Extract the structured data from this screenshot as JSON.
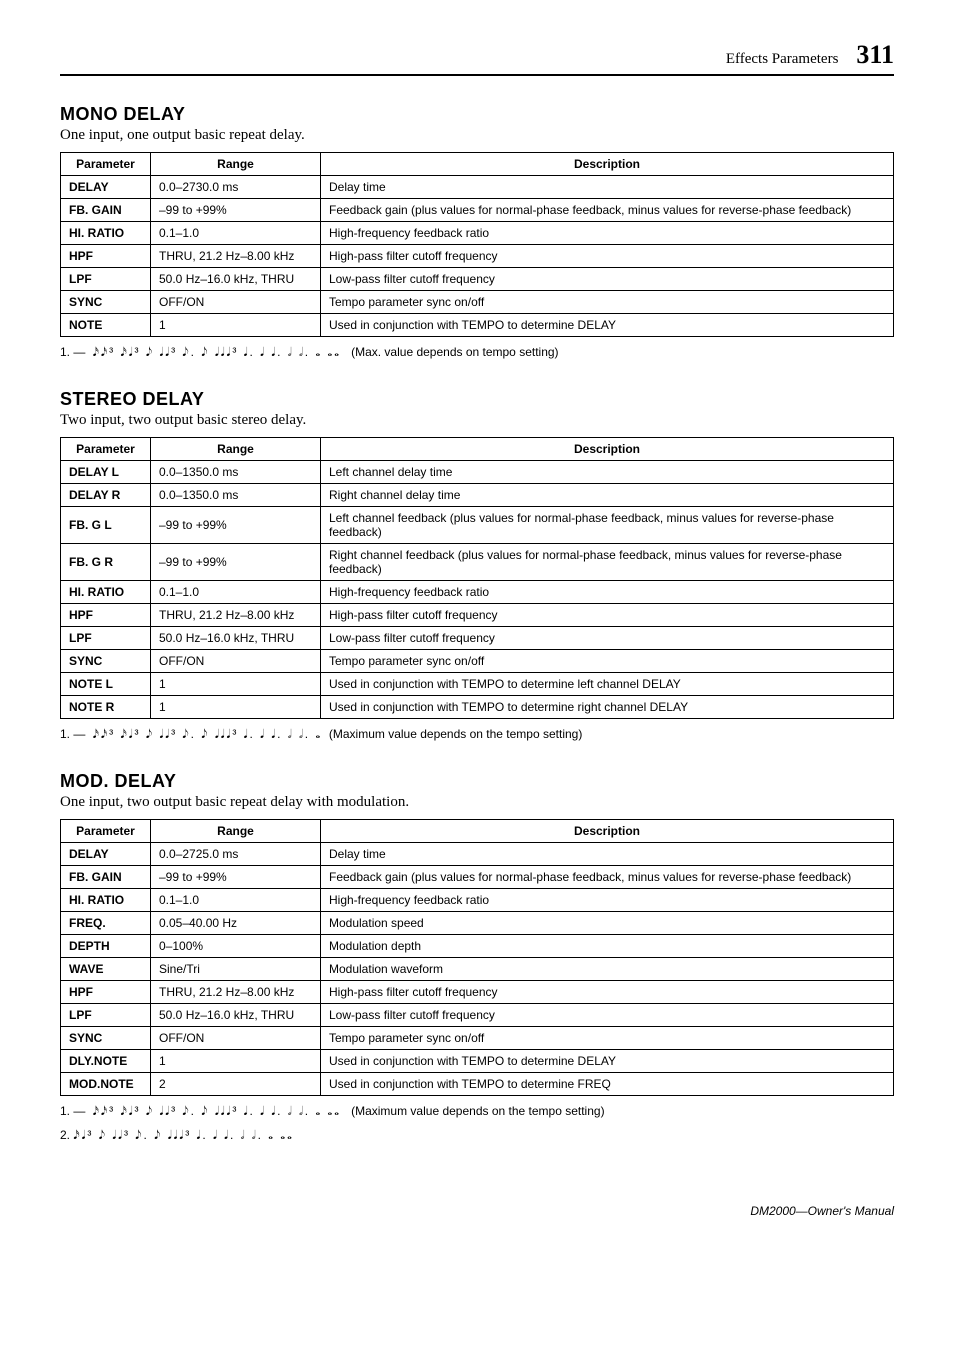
{
  "header": {
    "section_label": "Effects Parameters",
    "page_number": "311"
  },
  "mono": {
    "title": "MONO DELAY",
    "subtitle": "One input, one output basic repeat delay.",
    "headers": {
      "param": "Parameter",
      "range": "Range",
      "desc": "Description"
    },
    "rows": [
      {
        "param": "DELAY",
        "range": "0.0–2730.0 ms",
        "desc": "Delay time"
      },
      {
        "param": "FB. GAIN",
        "range": "–99 to +99%",
        "desc": "Feedback gain (plus values for normal-phase feedback, minus values for reverse-phase feedback)"
      },
      {
        "param": "HI. RATIO",
        "range": "0.1–1.0",
        "desc": "High-frequency feedback ratio"
      },
      {
        "param": "HPF",
        "range": "THRU, 21.2 Hz–8.00 kHz",
        "desc": "High-pass filter cutoff frequency"
      },
      {
        "param": "LPF",
        "range": "50.0 Hz–16.0 kHz, THRU",
        "desc": "Low-pass filter cutoff frequency"
      },
      {
        "param": "SYNC",
        "range": "OFF/ON",
        "desc": "Tempo parameter sync on/off"
      },
      {
        "param": "NOTE",
        "range": "1",
        "desc": "Used in conjunction with TEMPO to determine DELAY"
      }
    ],
    "footnote_num": "1.",
    "footnote_notation": "— 𝅘𝅥𝅯𝅘𝅥𝅯³ 𝅘𝅥𝅯𝅘𝅥³ 𝅘𝅥𝅮 𝅘𝅥𝅘𝅥³ 𝅘𝅥𝅮. 𝅘𝅥𝅮 𝅘𝅥𝅘𝅥𝅘𝅥³ 𝅘𝅥. 𝅘𝅥 𝅘𝅥. 𝅗𝅥 𝅗𝅥. 𝅝 𝅝𝅝",
    "footnote_text": "(Max. value depends on tempo setting)"
  },
  "stereo": {
    "title": "STEREO DELAY",
    "subtitle": "Two input, two output basic stereo delay.",
    "headers": {
      "param": "Parameter",
      "range": "Range",
      "desc": "Description"
    },
    "rows": [
      {
        "param": "DELAY L",
        "range": "0.0–1350.0 ms",
        "desc": "Left channel delay time"
      },
      {
        "param": "DELAY R",
        "range": "0.0–1350.0 ms",
        "desc": "Right channel delay time"
      },
      {
        "param": "FB. G L",
        "range": "–99 to +99%",
        "desc": "Left channel feedback (plus values for normal-phase feedback, minus values for reverse-phase feedback)"
      },
      {
        "param": "FB. G R",
        "range": "–99 to +99%",
        "desc": "Right channel feedback (plus values for normal-phase feedback, minus values for reverse-phase feedback)"
      },
      {
        "param": "HI. RATIO",
        "range": "0.1–1.0",
        "desc": "High-frequency feedback ratio"
      },
      {
        "param": "HPF",
        "range": "THRU, 21.2 Hz–8.00 kHz",
        "desc": "High-pass filter cutoff frequency"
      },
      {
        "param": "LPF",
        "range": "50.0 Hz–16.0 kHz, THRU",
        "desc": "Low-pass filter cutoff frequency"
      },
      {
        "param": "SYNC",
        "range": "OFF/ON",
        "desc": "Tempo parameter sync on/off"
      },
      {
        "param": "NOTE L",
        "range": "1",
        "desc": "Used in conjunction with TEMPO to determine left channel DELAY"
      },
      {
        "param": "NOTE R",
        "range": "1",
        "desc": "Used in conjunction with TEMPO to determine right channel DELAY"
      }
    ],
    "footnote_num": "1.",
    "footnote_notation": "— 𝅘𝅥𝅯𝅘𝅥𝅯³ 𝅘𝅥𝅯𝅘𝅥³ 𝅘𝅥𝅮 𝅘𝅥𝅘𝅥³ 𝅘𝅥𝅮. 𝅘𝅥𝅮 𝅘𝅥𝅘𝅥𝅘𝅥³ 𝅘𝅥. 𝅘𝅥 𝅘𝅥. 𝅗𝅥 𝅗𝅥. 𝅝",
    "footnote_text": "(Maximum value depends on the tempo setting)"
  },
  "mod": {
    "title": "MOD. DELAY",
    "subtitle": "One input, two output basic repeat delay with modulation.",
    "headers": {
      "param": "Parameter",
      "range": "Range",
      "desc": "Description"
    },
    "rows": [
      {
        "param": "DELAY",
        "range": "0.0–2725.0 ms",
        "desc": "Delay time"
      },
      {
        "param": "FB. GAIN",
        "range": "–99 to +99%",
        "desc": "Feedback gain (plus values for normal-phase feedback, minus values for reverse-phase feedback)"
      },
      {
        "param": "HI. RATIO",
        "range": "0.1–1.0",
        "desc": "High-frequency feedback ratio"
      },
      {
        "param": "FREQ.",
        "range": "0.05–40.00 Hz",
        "desc": "Modulation speed"
      },
      {
        "param": "DEPTH",
        "range": "0–100%",
        "desc": "Modulation depth"
      },
      {
        "param": "WAVE",
        "range": "Sine/Tri",
        "desc": "Modulation waveform"
      },
      {
        "param": "HPF",
        "range": "THRU, 21.2 Hz–8.00 kHz",
        "desc": "High-pass filter cutoff frequency"
      },
      {
        "param": "LPF",
        "range": "50.0 Hz–16.0 kHz, THRU",
        "desc": "Low-pass filter cutoff frequency"
      },
      {
        "param": "SYNC",
        "range": "OFF/ON",
        "desc": "Tempo parameter sync on/off"
      },
      {
        "param": "DLY.NOTE",
        "range": "1",
        "desc": "Used in conjunction with TEMPO to determine DELAY"
      },
      {
        "param": "MOD.NOTE",
        "range": "2",
        "desc": "Used in conjunction with TEMPO to determine FREQ"
      }
    ],
    "footnote1_num": "1.",
    "footnote1_notation": "— 𝅘𝅥𝅯𝅘𝅥𝅯³ 𝅘𝅥𝅯𝅘𝅥³ 𝅘𝅥𝅮 𝅘𝅥𝅘𝅥³ 𝅘𝅥𝅮. 𝅘𝅥𝅮 𝅘𝅥𝅘𝅥𝅘𝅥³ 𝅘𝅥. 𝅘𝅥 𝅘𝅥. 𝅗𝅥 𝅗𝅥. 𝅝 𝅝𝅝",
    "footnote1_text": "(Maximum value depends on the tempo setting)",
    "footnote2_num": "2.",
    "footnote2_notation": "𝅘𝅥𝅯𝅘𝅥³ 𝅘𝅥𝅮 𝅘𝅥𝅘𝅥³ 𝅘𝅥𝅮. 𝅘𝅥𝅮 𝅘𝅥𝅘𝅥𝅘𝅥³ 𝅘𝅥. 𝅘𝅥 𝅘𝅥. 𝅗𝅥 𝅗𝅥. 𝅝 𝅝𝅝"
  },
  "footer": {
    "text": "DM2000—Owner's Manual"
  }
}
